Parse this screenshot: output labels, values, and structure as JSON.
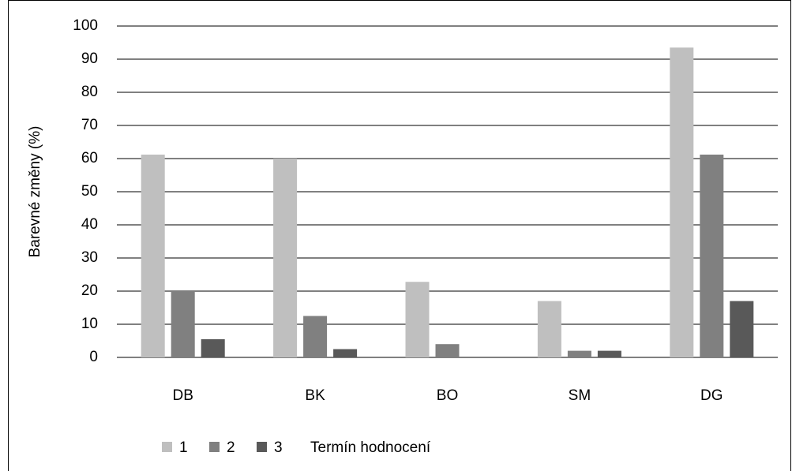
{
  "chart_data": {
    "type": "bar",
    "y_label": "Barevné změny (%)",
    "legend_title": "Termín hodnocení",
    "categories": [
      "DB",
      "BK",
      "BO",
      "SM",
      "DG"
    ],
    "series": [
      {
        "name": "1",
        "color": "#bfbfbf",
        "values": [
          61.2,
          60,
          22.8,
          17,
          93.5
        ]
      },
      {
        "name": "2",
        "color": "#808080",
        "values": [
          20,
          12.5,
          4,
          2,
          61.2
        ]
      },
      {
        "name": "3",
        "color": "#595959",
        "values": [
          5.5,
          2.5,
          0,
          2,
          17
        ]
      }
    ],
    "ylim": [
      0,
      100
    ],
    "yticks": [
      0,
      10,
      20,
      30,
      40,
      50,
      60,
      70,
      80,
      90,
      100
    ],
    "grid": true,
    "legend": "bottom"
  }
}
